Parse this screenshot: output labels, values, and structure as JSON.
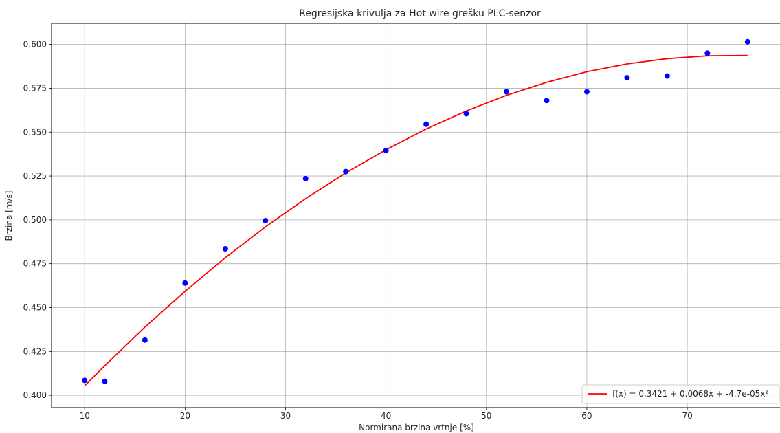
{
  "chart_data": {
    "type": "scatter",
    "title": "Regresijska krivulja za Hot wire grešku PLC-senzor",
    "xlabel": "Normirana brzina vrtnje [%]",
    "ylabel": "Brzina [m/s]",
    "xlim": [
      6.7,
      79.3
    ],
    "ylim": [
      0.393,
      0.612
    ],
    "x_ticks": [
      10,
      20,
      30,
      40,
      50,
      60,
      70
    ],
    "y_ticks": [
      0.4,
      0.425,
      0.45,
      0.475,
      0.5,
      0.525,
      0.55,
      0.575,
      0.6
    ],
    "x_tick_labels": [
      "10",
      "20",
      "30",
      "40",
      "50",
      "60",
      "70"
    ],
    "y_tick_labels": [
      "0.400",
      "0.425",
      "0.450",
      "0.475",
      "0.500",
      "0.525",
      "0.550",
      "0.575",
      "0.600"
    ],
    "grid": true,
    "legend_position": "lower right",
    "series": [
      {
        "kind": "scatter",
        "color": "#0000ff",
        "x": [
          10,
          12,
          16,
          20,
          24,
          28,
          32,
          36,
          40,
          44,
          48,
          52,
          56,
          60,
          64,
          68,
          72,
          76
        ],
        "y": [
          0.4085,
          0.408,
          0.4315,
          0.464,
          0.4835,
          0.4995,
          0.5235,
          0.5275,
          0.5395,
          0.5545,
          0.5605,
          0.573,
          0.568,
          0.573,
          0.581,
          0.582,
          0.595,
          0.6015
        ]
      },
      {
        "kind": "line",
        "name": "f(x) = 0.3421 + 0.0068x + -4.7e-05x²",
        "color": "#ff0000",
        "x": [
          10,
          12,
          16,
          20,
          24,
          28,
          32,
          36,
          40,
          44,
          48,
          52,
          56,
          60,
          64,
          68,
          72,
          76
        ],
        "y": [
          0.4054,
          0.4169,
          0.4389,
          0.4593,
          0.4784,
          0.496,
          0.5121,
          0.5268,
          0.54,
          0.5518,
          0.5621,
          0.571,
          0.5784,
          0.5844,
          0.5889,
          0.5919,
          0.5935,
          0.5937
        ]
      }
    ]
  }
}
